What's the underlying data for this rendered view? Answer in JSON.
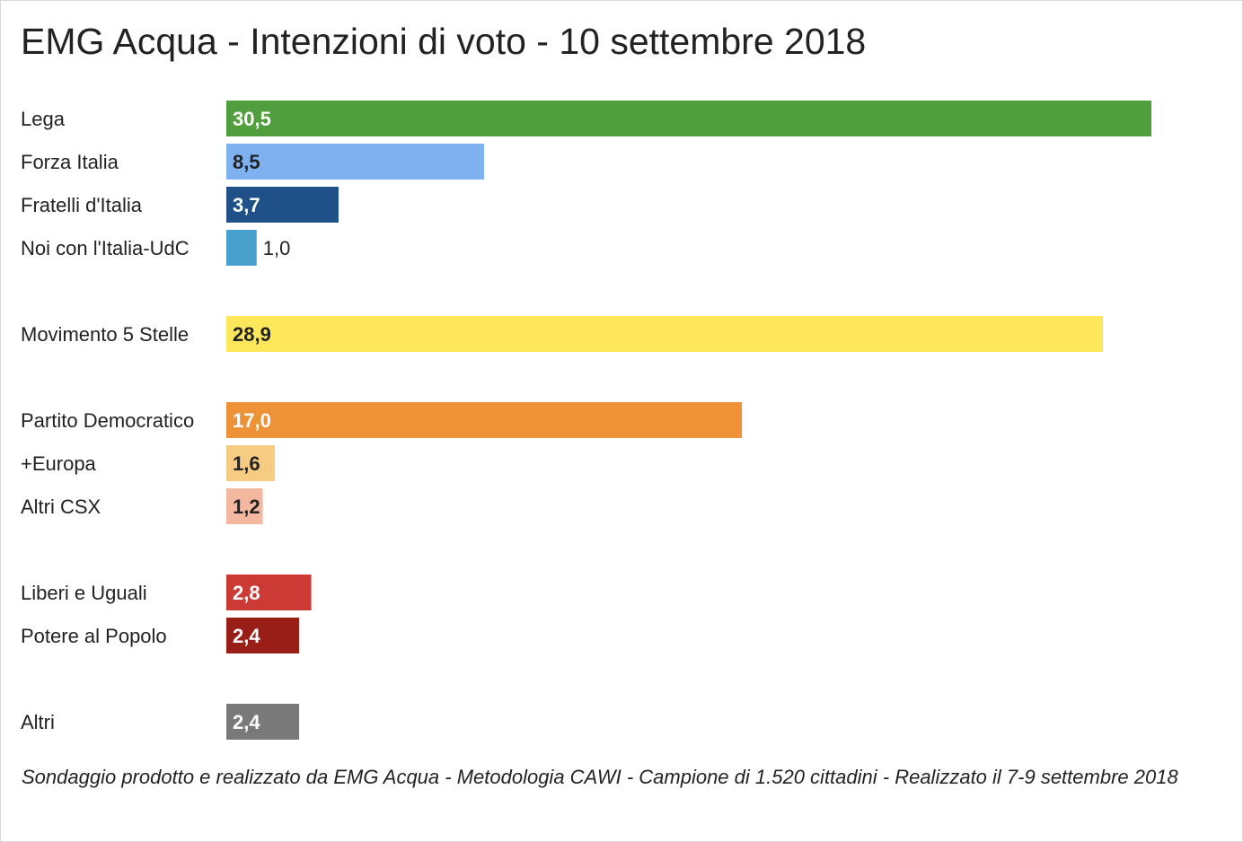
{
  "title": "EMG Acqua - Intenzioni di voto - 10 settembre 2018",
  "footnote": "Sondaggio prodotto e realizzato da EMG Acqua - Metodologia CAWI - Campione di 1.520 cittadini - Realizzato il 7-9 settembre 2018",
  "chart_data": {
    "type": "bar",
    "orientation": "horizontal",
    "title": "EMG Acqua - Intenzioni di voto - 10 settembre 2018",
    "xlabel": "",
    "ylabel": "",
    "grid": false,
    "legend": "none",
    "categories": [
      "Lega",
      "Forza Italia",
      "Fratelli d'Italia",
      "Noi con l'Italia-UdC",
      "Movimento 5 Stelle",
      "Partito Democratico",
      "+Europa",
      "Altri CSX",
      "Liberi e Uguali",
      "Potere al Popolo",
      "Altri"
    ],
    "values": [
      30.5,
      8.5,
      3.7,
      1.0,
      28.9,
      17.0,
      1.6,
      1.2,
      2.8,
      2.4,
      2.4
    ],
    "value_labels": [
      "30,5",
      "8,5",
      "3,7",
      "1,0",
      "28,9",
      "17,0",
      "1,6",
      "1,2",
      "2,8",
      "2,4",
      "2,4"
    ],
    "groups": [
      [
        0,
        1,
        2,
        3
      ],
      [
        4
      ],
      [
        5,
        6,
        7
      ],
      [
        8,
        9
      ],
      [
        10
      ]
    ],
    "colors": [
      "#519e3e",
      "#7fb1f0",
      "#1f5087",
      "#48a0cc",
      "#fee75b",
      "#ed9237",
      "#f6cb82",
      "#f4b8a1",
      "#cc3a35",
      "#981e17",
      "#797979"
    ],
    "label_colors": [
      "#ffffff",
      "#222222",
      "#ffffff",
      "#222222",
      "#222222",
      "#ffffff",
      "#222222",
      "#222222",
      "#ffffff",
      "#ffffff",
      "#ffffff"
    ],
    "xlim": [
      0,
      30.5
    ]
  }
}
